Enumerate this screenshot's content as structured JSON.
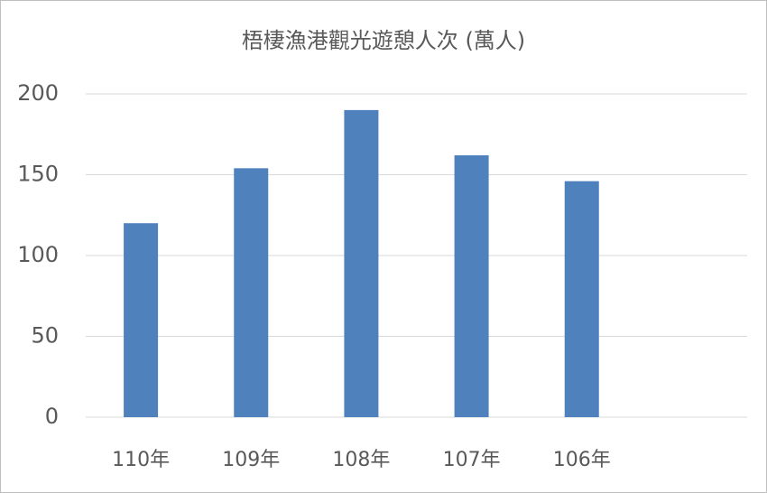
{
  "chart_data": {
    "type": "bar",
    "title": "梧棲漁港觀光遊憩人次 (萬人)",
    "categories": [
      "110年",
      "109年",
      "108年",
      "107年",
      "106年",
      null
    ],
    "values": [
      120,
      154,
      190,
      162,
      146,
      null
    ],
    "color": "#4f81bd",
    "ylim": [
      0,
      200
    ],
    "yticks": [
      0,
      50,
      100,
      150,
      200
    ],
    "grid": true
  }
}
